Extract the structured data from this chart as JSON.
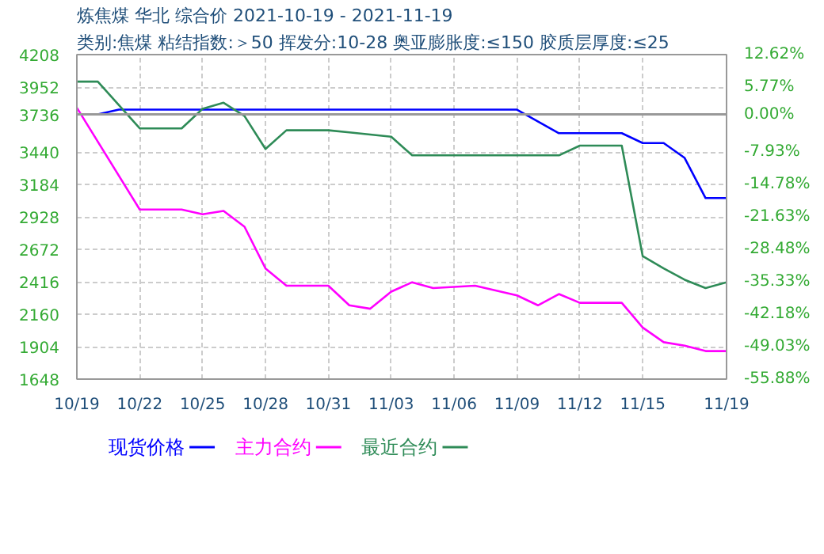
{
  "chart_data": {
    "type": "line",
    "title": "炼焦煤 华北 综合价 2021-10-19 - 2021-11-19",
    "subtitle": "类别:焦煤 粘结指数:＞50 挥发分:10-28 奥亚膨胀度:≤150 胶质层厚度:≤25",
    "xlim": [
      "2021-10-19",
      "2021-11-19"
    ],
    "xticks": [
      {
        "value": "2021-10-19",
        "label": "10/19"
      },
      {
        "value": "2021-10-22",
        "label": "10/22"
      },
      {
        "value": "2021-10-25",
        "label": "10/25"
      },
      {
        "value": "2021-10-28",
        "label": "10/28"
      },
      {
        "value": "2021-10-31",
        "label": "10/31"
      },
      {
        "value": "2021-11-03",
        "label": "11/03"
      },
      {
        "value": "2021-11-06",
        "label": "11/06"
      },
      {
        "value": "2021-11-09",
        "label": "11/09"
      },
      {
        "value": "2021-11-12",
        "label": "11/12"
      },
      {
        "value": "2021-11-15",
        "label": "11/15"
      },
      {
        "value": "2021-11-19",
        "label": "11/19"
      }
    ],
    "ylim": [
      1648,
      4208
    ],
    "yticks": [
      4208,
      3952,
      3736,
      3440,
      3184,
      2928,
      2672,
      2416,
      2160,
      1904,
      1648
    ],
    "y2lim": [
      -55.88,
      12.62
    ],
    "y2ticks": [
      {
        "value": 12.62,
        "label": "12.62%"
      },
      {
        "value": 5.77,
        "label": "5.77%"
      },
      {
        "value": 0,
        "label": "0.00%"
      },
      {
        "value": -7.93,
        "label": "-7.93%"
      },
      {
        "value": -14.78,
        "label": "-14.78%"
      },
      {
        "value": -21.63,
        "label": "-21.63%"
      },
      {
        "value": -28.48,
        "label": "-28.48%"
      },
      {
        "value": -35.33,
        "label": "-35.33%"
      },
      {
        "value": -42.18,
        "label": "-42.18%"
      },
      {
        "value": -49.03,
        "label": "-49.03%"
      },
      {
        "value": -55.88,
        "label": "-55.88%"
      }
    ],
    "grid": true,
    "legend": "bottom",
    "ref_lines": [
      {
        "axis": "y",
        "value": 3736,
        "color": "#999999"
      }
    ],
    "series": [
      {
        "name": "现货价格",
        "color": "#0000ff",
        "x": [
          "2021-10-19",
          "2021-10-20",
          "2021-10-21",
          "2021-11-09",
          "2021-11-11",
          "2021-11-14",
          "2021-11-15",
          "2021-11-16",
          "2021-11-17",
          "2021-11-18",
          "2021-11-19"
        ],
        "values": [
          3736,
          3736,
          3774,
          3774,
          3588,
          3588,
          3510,
          3510,
          3393,
          3076,
          3076
        ]
      },
      {
        "name": "主力合约",
        "color": "#ff00ff",
        "x": [
          "2021-10-19",
          "2021-10-22",
          "2021-10-24",
          "2021-10-25",
          "2021-10-26",
          "2021-10-27",
          "2021-10-28",
          "2021-10-29",
          "2021-10-31",
          "2021-11-01",
          "2021-11-02",
          "2021-11-03",
          "2021-11-04",
          "2021-11-05",
          "2021-11-07",
          "2021-11-09",
          "2021-11-10",
          "2021-11-11",
          "2021-11-12",
          "2021-11-14",
          "2021-11-15",
          "2021-11-16",
          "2021-11-17",
          "2021-11-18",
          "2021-11-19"
        ],
        "values": [
          3789,
          2986,
          2986,
          2948,
          2975,
          2850,
          2521,
          2385,
          2385,
          2230,
          2203,
          2338,
          2412,
          2366,
          2385,
          2308,
          2230,
          2319,
          2250,
          2250,
          2055,
          1939,
          1912,
          1869,
          1869
        ]
      },
      {
        "name": "最近合约",
        "color": "#2e8b57",
        "x": [
          "2021-10-19",
          "2021-10-20",
          "2021-10-22",
          "2021-10-24",
          "2021-10-25",
          "2021-10-26",
          "2021-10-27",
          "2021-10-28",
          "2021-10-29",
          "2021-10-31",
          "2021-11-01",
          "2021-11-03",
          "2021-11-04",
          "2021-11-11",
          "2021-11-12",
          "2021-11-14",
          "2021-11-15",
          "2021-11-16",
          "2021-11-17",
          "2021-11-18",
          "2021-11-19"
        ],
        "values": [
          3995,
          3995,
          3626,
          3626,
          3781,
          3828,
          3723,
          3463,
          3611,
          3611,
          3595,
          3560,
          3413,
          3413,
          3490,
          3490,
          2618,
          2521,
          2432,
          2366,
          2412
        ]
      }
    ]
  }
}
